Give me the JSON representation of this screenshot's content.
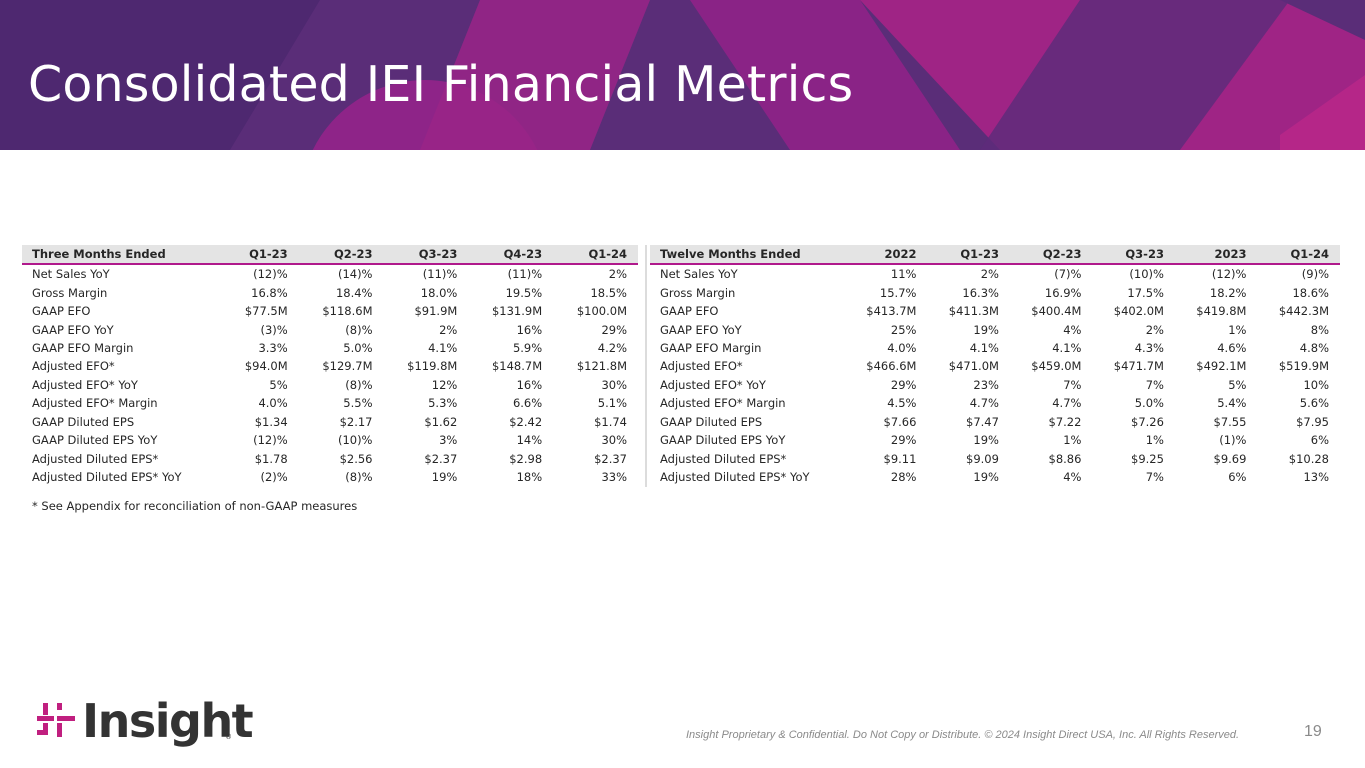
{
  "title": "Consolidated IEI Financial Metrics",
  "colors": {
    "banner": "#5a2d78",
    "accent_magenta": "#b0198c",
    "header_fill": "#e4e4e4"
  },
  "left_table": {
    "header_label": "Three Months Ended",
    "columns": [
      "Q1-23",
      "Q2-23",
      "Q3-23",
      "Q4-23",
      "Q1-24"
    ],
    "rows": [
      {
        "label": "Net Sales YoY",
        "values": [
          "(12)%",
          "(14)%",
          "(11)%",
          "(11)%",
          "2%"
        ]
      },
      {
        "label": "Gross Margin",
        "values": [
          "16.8%",
          "18.4%",
          "18.0%",
          "19.5%",
          "18.5%"
        ]
      },
      {
        "label": "GAAP EFO",
        "values": [
          "$77.5M",
          "$118.6M",
          "$91.9M",
          "$131.9M",
          "$100.0M"
        ]
      },
      {
        "label": "GAAP EFO YoY",
        "values": [
          "(3)%",
          "(8)%",
          "2%",
          "16%",
          "29%"
        ]
      },
      {
        "label": "GAAP EFO Margin",
        "values": [
          "3.3%",
          "5.0%",
          "4.1%",
          "5.9%",
          "4.2%"
        ]
      },
      {
        "label": "Adjusted EFO*",
        "values": [
          "$94.0M",
          "$129.7M",
          "$119.8M",
          "$148.7M",
          "$121.8M"
        ]
      },
      {
        "label": "Adjusted EFO* YoY",
        "values": [
          "5%",
          "(8)%",
          "12%",
          "16%",
          "30%"
        ]
      },
      {
        "label": "Adjusted EFO* Margin",
        "values": [
          "4.0%",
          "5.5%",
          "5.3%",
          "6.6%",
          "5.1%"
        ]
      },
      {
        "label": "GAAP Diluted EPS",
        "values": [
          "$1.34",
          "$2.17",
          "$1.62",
          "$2.42",
          "$1.74"
        ]
      },
      {
        "label": "GAAP Diluted EPS YoY",
        "values": [
          "(12)%",
          "(10)%",
          "3%",
          "14%",
          "30%"
        ]
      },
      {
        "label": "Adjusted Diluted EPS*",
        "values": [
          "$1.78",
          "$2.56",
          "$2.37",
          "$2.98",
          "$2.37"
        ]
      },
      {
        "label": "Adjusted Diluted EPS* YoY",
        "values": [
          "(2)%",
          "(8)%",
          "19%",
          "18%",
          "33%"
        ]
      }
    ]
  },
  "right_table": {
    "header_label": "Twelve Months Ended",
    "columns": [
      "2022",
      "Q1-23",
      "Q2-23",
      "Q3-23",
      "2023",
      "Q1-24"
    ],
    "rows": [
      {
        "label": "Net Sales YoY",
        "values": [
          "11%",
          "2%",
          "(7)%",
          "(10)%",
          "(12)%",
          "(9)%"
        ]
      },
      {
        "label": "Gross Margin",
        "values": [
          "15.7%",
          "16.3%",
          "16.9%",
          "17.5%",
          "18.2%",
          "18.6%"
        ]
      },
      {
        "label": "GAAP EFO",
        "values": [
          "$413.7M",
          "$411.3M",
          "$400.4M",
          "$402.0M",
          "$419.8M",
          "$442.3M"
        ]
      },
      {
        "label": "GAAP EFO YoY",
        "values": [
          "25%",
          "19%",
          "4%",
          "2%",
          "1%",
          "8%"
        ]
      },
      {
        "label": "GAAP EFO Margin",
        "values": [
          "4.0%",
          "4.1%",
          "4.1%",
          "4.3%",
          "4.6%",
          "4.8%"
        ]
      },
      {
        "label": "Adjusted EFO*",
        "values": [
          "$466.6M",
          "$471.0M",
          "$459.0M",
          "$471.7M",
          "$492.1M",
          "$519.9M"
        ]
      },
      {
        "label": "Adjusted EFO* YoY",
        "values": [
          "29%",
          "23%",
          "7%",
          "7%",
          "5%",
          "10%"
        ]
      },
      {
        "label": "Adjusted EFO* Margin",
        "values": [
          "4.5%",
          "4.7%",
          "4.7%",
          "5.0%",
          "5.4%",
          "5.6%"
        ]
      },
      {
        "label": "GAAP Diluted EPS",
        "values": [
          "$7.66",
          "$7.47",
          "$7.22",
          "$7.26",
          "$7.55",
          "$7.95"
        ]
      },
      {
        "label": "GAAP Diluted EPS YoY",
        "values": [
          "29%",
          "19%",
          "1%",
          "1%",
          "(1)%",
          "6%"
        ]
      },
      {
        "label": "Adjusted Diluted EPS*",
        "values": [
          "$9.11",
          "$9.09",
          "$8.86",
          "$9.25",
          "$9.69",
          "$10.28"
        ]
      },
      {
        "label": "Adjusted Diluted EPS* YoY",
        "values": [
          "28%",
          "19%",
          "4%",
          "7%",
          "6%",
          "13%"
        ]
      }
    ]
  },
  "footnote": "* See Appendix for reconciliation of non-GAAP measures",
  "logo": {
    "text": "Insight",
    "reg": "®"
  },
  "footer": {
    "confidential": "Insight Proprietary & Confidential. Do Not Copy or Distribute. © 2024 Insight Direct USA, Inc. All Rights Reserved.",
    "page_number": "19"
  }
}
